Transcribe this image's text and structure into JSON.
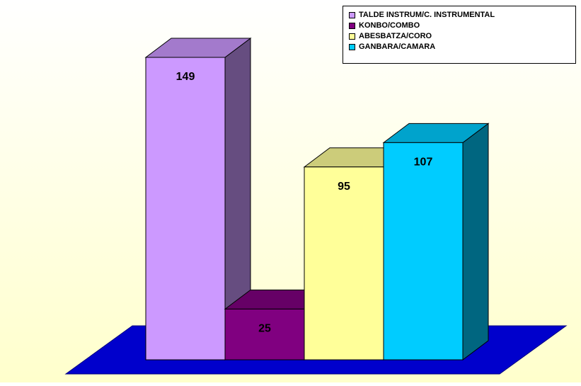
{
  "chart_data": {
    "type": "bar",
    "title": "",
    "xlabel": "",
    "ylabel": "",
    "ylim": [
      0,
      160
    ],
    "grid": false,
    "legend_placement": "top-right",
    "categories": [
      "TALDE INSTRUM/C. INSTRUMENTAL",
      "KONBO/COMBO",
      "ABESBATZA/CORO",
      "GANBARA/CAMARA"
    ],
    "values": [
      149,
      25,
      95,
      107
    ],
    "data_labels": [
      "149",
      "25",
      "95",
      "107"
    ],
    "colors": {
      "front": [
        "#cc99ff",
        "#800080",
        "#ffff99",
        "#00ccff"
      ],
      "side": [
        "#664d80",
        "#400040",
        "#80804d",
        "#006680"
      ],
      "top": [
        "#a37acc",
        "#660066",
        "#cccc7a",
        "#00a3cc"
      ],
      "floor": "#0000cc",
      "floor_edge": "#000080",
      "background_top": "#ffffff",
      "background_bottom": "#ffffcc"
    }
  }
}
